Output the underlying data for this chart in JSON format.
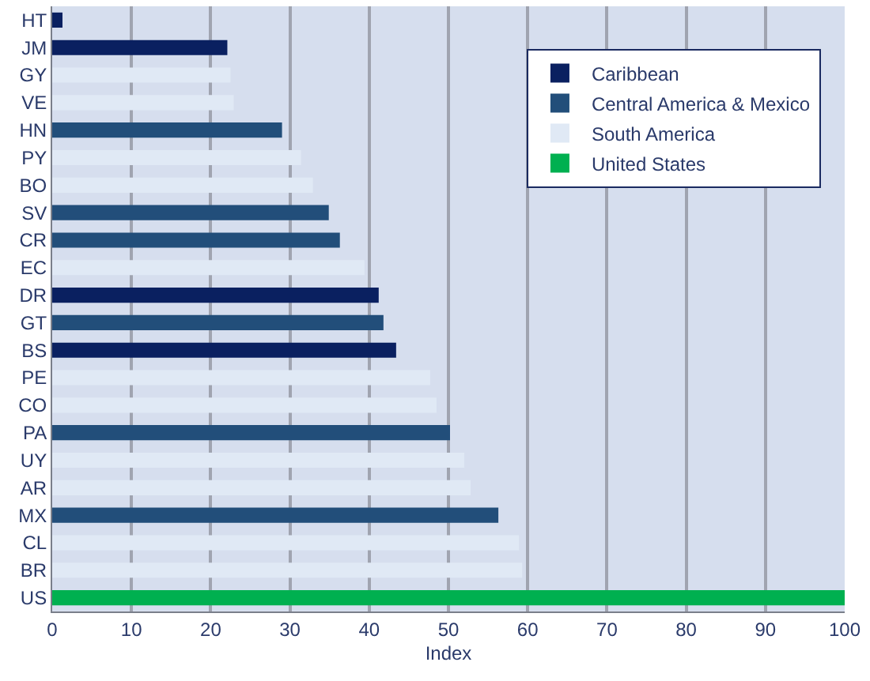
{
  "chart_data": {
    "type": "bar",
    "orientation": "horizontal",
    "xlabel": "Index",
    "categories": [
      "HT",
      "JM",
      "GY",
      "VE",
      "HN",
      "PY",
      "BO",
      "SV",
      "CR",
      "EC",
      "DR",
      "GT",
      "BS",
      "PE",
      "CO",
      "PA",
      "UY",
      "AR",
      "MX",
      "CL",
      "BR",
      "US"
    ],
    "series": [
      {
        "name": "Caribbean",
        "color": "#0a2060",
        "values": [
          1.3,
          22.1,
          null,
          null,
          null,
          null,
          null,
          null,
          null,
          null,
          41.2,
          null,
          43.4,
          null,
          null,
          null,
          null,
          null,
          null,
          null,
          null,
          null
        ]
      },
      {
        "name": "Central America & Mexico",
        "color": "#224e7a",
        "values": [
          null,
          null,
          null,
          null,
          29.0,
          null,
          null,
          34.9,
          36.3,
          null,
          null,
          41.8,
          null,
          null,
          null,
          50.2,
          null,
          null,
          56.3,
          null,
          null,
          null
        ]
      },
      {
        "name": "South America",
        "color": "#e0e9f5",
        "values": [
          null,
          null,
          22.5,
          22.9,
          null,
          31.4,
          32.9,
          null,
          null,
          39.4,
          null,
          null,
          null,
          47.7,
          48.5,
          null,
          52.0,
          52.8,
          null,
          58.9,
          59.3,
          null
        ]
      },
      {
        "name": "United States",
        "color": "#00b050",
        "values": [
          null,
          null,
          null,
          null,
          null,
          null,
          null,
          null,
          null,
          null,
          null,
          null,
          null,
          null,
          null,
          null,
          null,
          null,
          null,
          null,
          null,
          100
        ]
      }
    ],
    "xlim": [
      0,
      100
    ],
    "xticks": [
      0,
      10,
      20,
      30,
      40,
      50,
      60,
      70,
      80,
      90,
      100
    ],
    "grid": "x",
    "legend": "top right"
  }
}
